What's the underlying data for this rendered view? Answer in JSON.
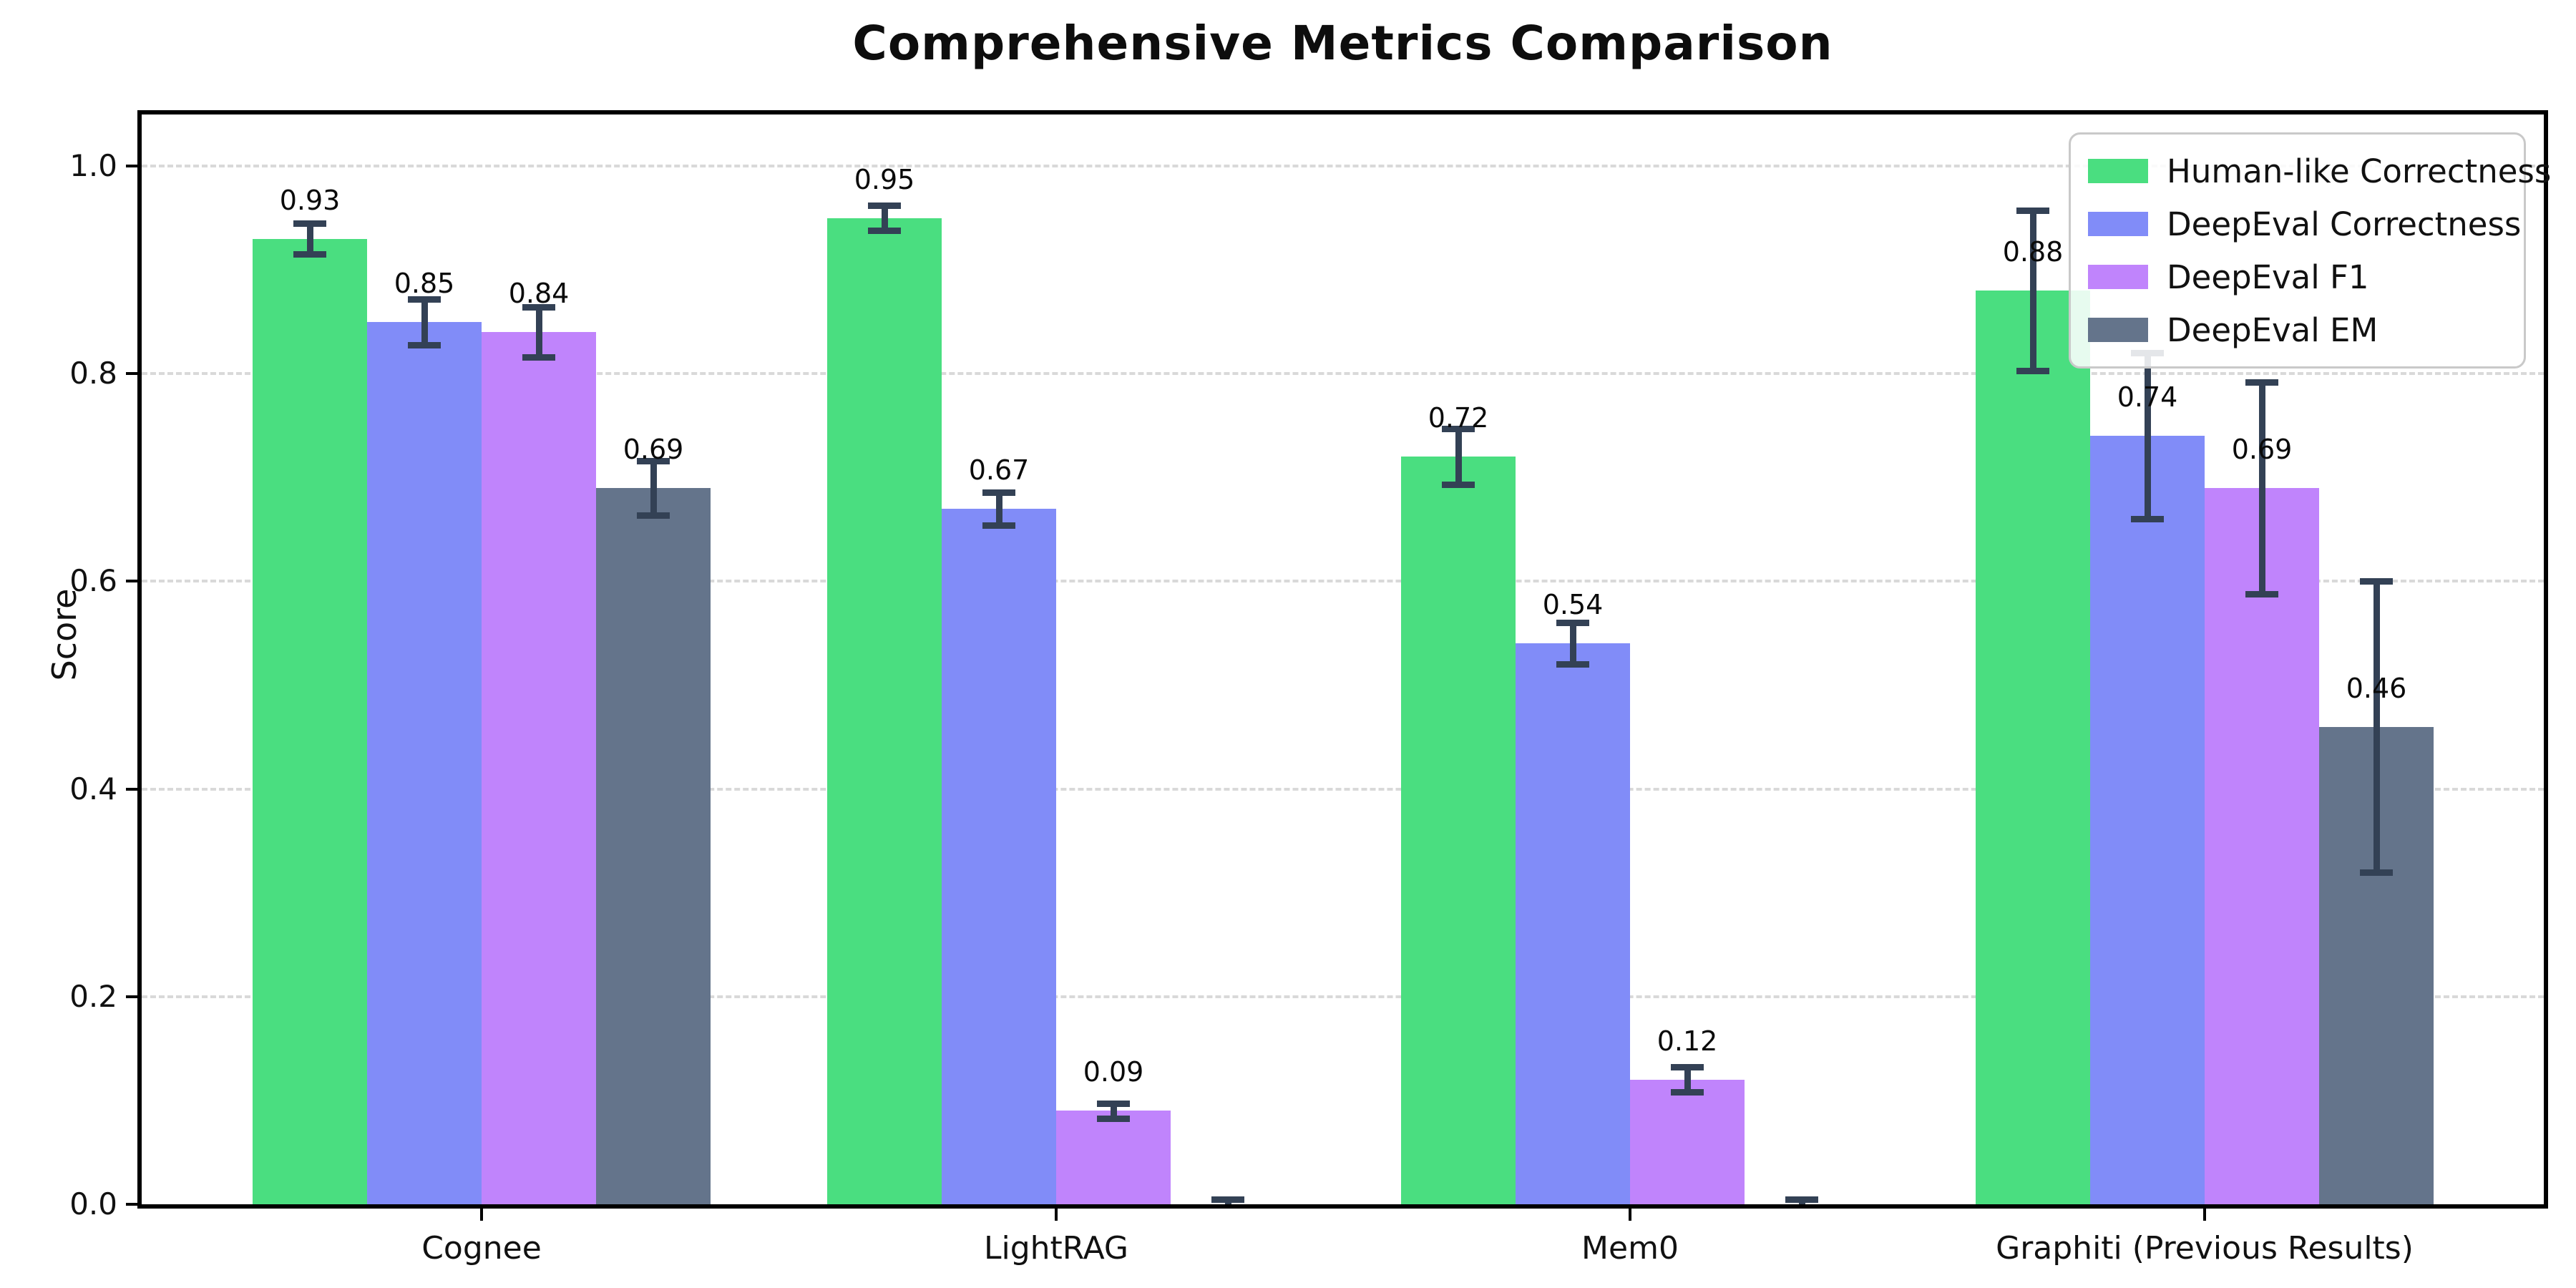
{
  "chart_data": {
    "type": "bar",
    "title": "Comprehensive Metrics Comparison",
    "xlabel": "",
    "ylabel": "Score",
    "ylim": [
      0,
      1.05
    ],
    "grid": "horizontal-dashed",
    "legend_position": "upper right",
    "background": "#ffffff",
    "error_bar_color": "#334155",
    "categories": [
      "Cognee",
      "LightRAG",
      "Mem0",
      "Graphiti (Previous Results)"
    ],
    "yticks": [
      {
        "value": 0.0,
        "label": "0.0"
      },
      {
        "value": 0.2,
        "label": "0.2"
      },
      {
        "value": 0.4,
        "label": "0.4"
      },
      {
        "value": 0.6,
        "label": "0.6"
      },
      {
        "value": 0.8,
        "label": "0.8"
      },
      {
        "value": 1.0,
        "label": "1.0"
      }
    ],
    "series": [
      {
        "name": "Human-like Correctness",
        "color": "#4ade80",
        "values": [
          0.93,
          0.95,
          0.72,
          0.88
        ],
        "errors": [
          0.015,
          0.012,
          0.027,
          0.077
        ],
        "labels": [
          "0.93",
          "0.95",
          "0.72",
          "0.88"
        ]
      },
      {
        "name": "DeepEval Correctness",
        "color": "#818cf8",
        "values": [
          0.85,
          0.67,
          0.54,
          0.74
        ],
        "errors": [
          0.022,
          0.016,
          0.02,
          0.08
        ],
        "labels": [
          "0.85",
          "0.67",
          "0.54",
          "0.74"
        ]
      },
      {
        "name": "DeepEval F1",
        "color": "#c084fc",
        "values": [
          0.84,
          0.09,
          0.12,
          0.69
        ],
        "errors": [
          0.024,
          0.007,
          0.012,
          0.102
        ],
        "labels": [
          "0.84",
          "0.09",
          "0.12",
          "0.69"
        ]
      },
      {
        "name": "DeepEval EM",
        "color": "#64748b",
        "values": [
          0.69,
          0.0,
          0.0,
          0.46
        ],
        "errors": [
          0.026,
          0.005,
          0.005,
          0.14
        ],
        "labels": [
          "0.69",
          "",
          "",
          "0.46"
        ]
      }
    ]
  }
}
